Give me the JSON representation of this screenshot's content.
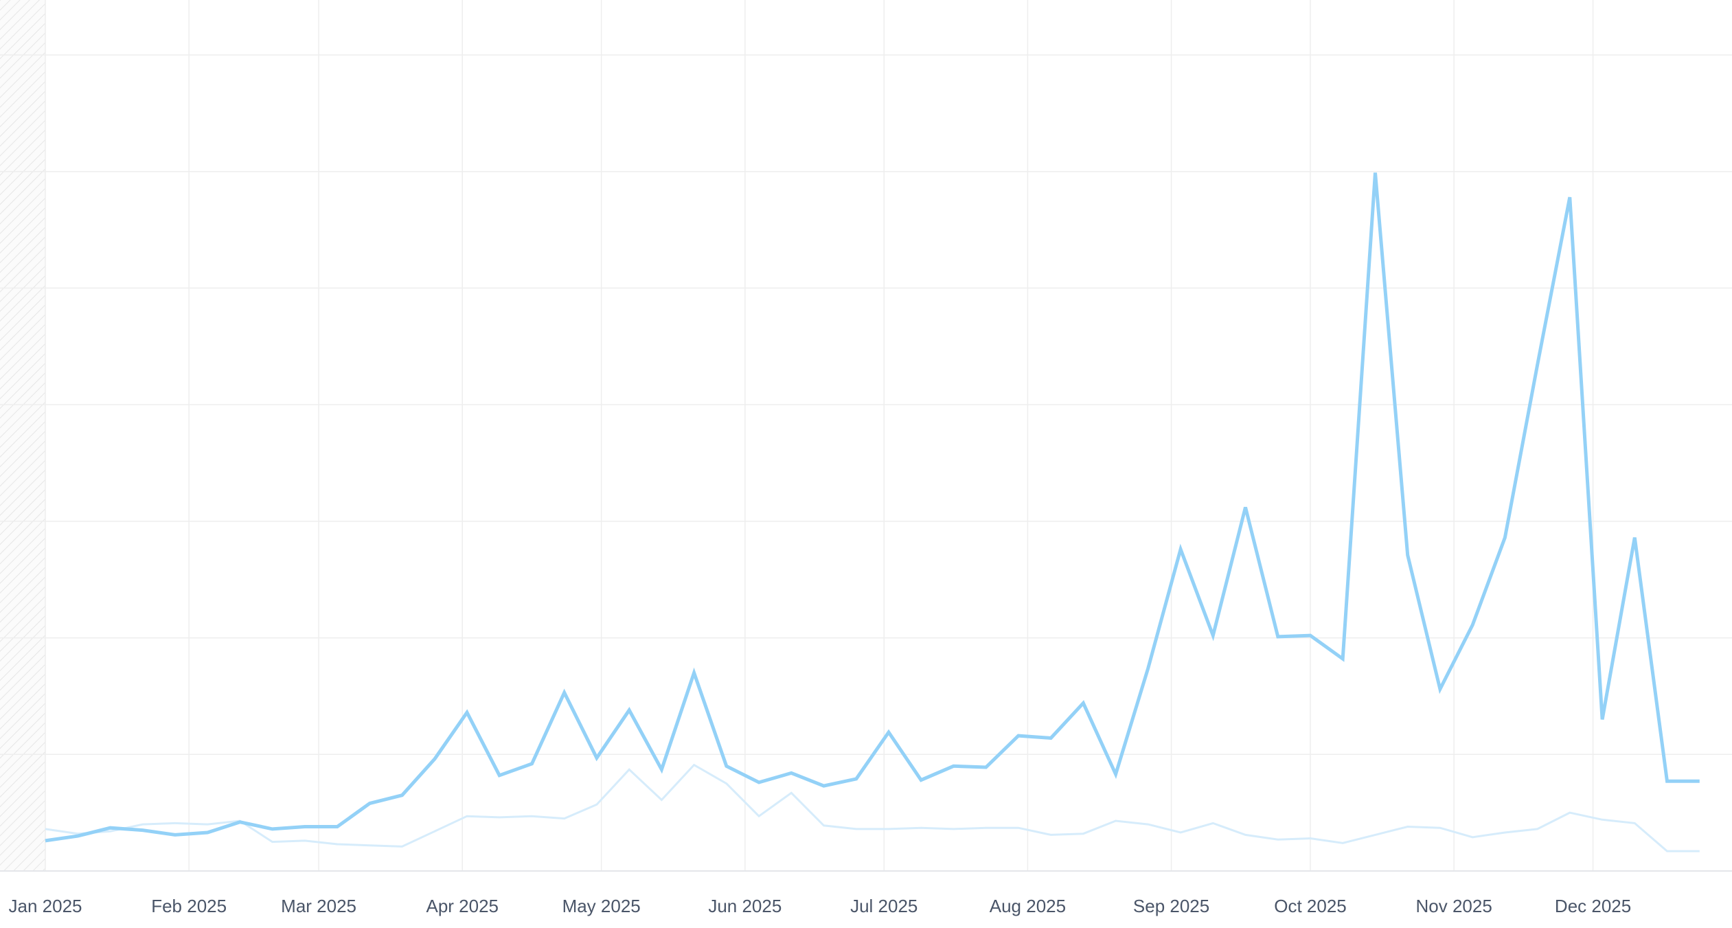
{
  "chart_data": {
    "type": "line",
    "title": "",
    "xlabel": "",
    "ylabel": "",
    "x_tick_labels": [
      "Jan 2025",
      "Feb 2025",
      "Mar 2025",
      "Apr 2025",
      "May 2025",
      "Jun 2025",
      "Jul 2025",
      "Aug 2025",
      "Sep 2025",
      "Oct 2025",
      "Nov 2025",
      "Dec 2025"
    ],
    "x_tick_dates": [
      "2025-01-01",
      "2025-02-01",
      "2025-03-01",
      "2025-04-01",
      "2025-05-01",
      "2025-06-01",
      "2025-07-01",
      "2025-08-01",
      "2025-09-01",
      "2025-10-01",
      "2025-11-01",
      "2025-12-01"
    ],
    "xlim": [
      "2025-01-01",
      "2025-12-31"
    ],
    "ylim": [
      0,
      7
    ],
    "grid": true,
    "y_tick_labels_shown": false,
    "x": [
      "2025-01-01",
      "2025-01-08",
      "2025-01-15",
      "2025-01-22",
      "2025-01-29",
      "2025-02-05",
      "2025-02-12",
      "2025-02-19",
      "2025-02-26",
      "2025-03-05",
      "2025-03-12",
      "2025-03-19",
      "2025-03-26",
      "2025-04-02",
      "2025-04-09",
      "2025-04-16",
      "2025-04-23",
      "2025-04-30",
      "2025-05-07",
      "2025-05-14",
      "2025-05-21",
      "2025-05-28",
      "2025-06-04",
      "2025-06-11",
      "2025-06-18",
      "2025-06-25",
      "2025-07-02",
      "2025-07-09",
      "2025-07-16",
      "2025-07-23",
      "2025-07-30",
      "2025-08-06",
      "2025-08-13",
      "2025-08-20",
      "2025-08-27",
      "2025-09-03",
      "2025-09-10",
      "2025-09-17",
      "2025-09-24",
      "2025-10-01",
      "2025-10-08",
      "2025-10-15",
      "2025-10-22",
      "2025-10-29",
      "2025-11-05",
      "2025-11-12",
      "2025-11-19",
      "2025-11-26",
      "2025-12-03",
      "2025-12-10",
      "2025-12-17",
      "2025-12-24"
    ],
    "series": [
      {
        "color": "#93d1f7",
        "values": [
          0.26,
          0.3,
          0.37,
          0.35,
          0.31,
          0.33,
          0.42,
          0.36,
          0.38,
          0.38,
          0.58,
          0.65,
          0.96,
          1.36,
          0.82,
          0.92,
          1.53,
          0.97,
          1.38,
          0.87,
          1.7,
          0.9,
          0.76,
          0.84,
          0.73,
          0.79,
          1.19,
          0.78,
          0.9,
          0.89,
          1.16,
          1.14,
          1.44,
          0.83,
          1.74,
          2.76,
          2.02,
          3.12,
          2.01,
          2.02,
          1.82,
          5.99,
          2.71,
          1.56,
          2.11,
          2.86,
          4.34,
          5.78,
          1.3,
          2.86,
          0.77,
          0.77
        ]
      },
      {
        "color": "#d6ecfb",
        "values": [
          0.36,
          0.32,
          0.34,
          0.4,
          0.41,
          0.4,
          0.43,
          0.25,
          0.26,
          0.23,
          0.22,
          0.21,
          0.34,
          0.47,
          0.46,
          0.47,
          0.45,
          0.57,
          0.87,
          0.61,
          0.91,
          0.75,
          0.47,
          0.67,
          0.39,
          0.36,
          0.36,
          0.37,
          0.36,
          0.37,
          0.37,
          0.31,
          0.32,
          0.43,
          0.4,
          0.33,
          0.41,
          0.31,
          0.27,
          0.28,
          0.24,
          0.31,
          0.38,
          0.37,
          0.29,
          0.33,
          0.36,
          0.5,
          0.44,
          0.41,
          0.17,
          0.17
        ]
      }
    ]
  }
}
